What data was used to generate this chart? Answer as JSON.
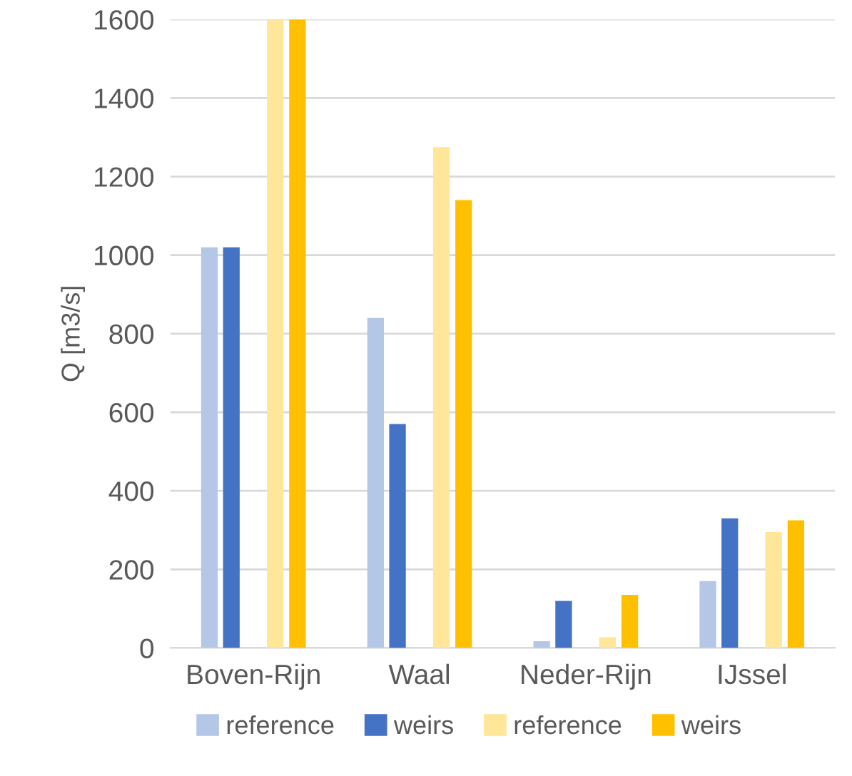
{
  "chart_data": {
    "type": "bar",
    "ylabel": "Q [m3/s]",
    "categories": [
      "Boven-Rijn",
      "Waal",
      "Neder-Rijn",
      "IJssel"
    ],
    "series": [
      {
        "name": "reference",
        "color": "#b4c7e7",
        "values": [
          1020,
          840,
          17,
          170
        ]
      },
      {
        "name": "weirs",
        "color": "#4472c4",
        "values": [
          1020,
          570,
          120,
          330
        ]
      },
      {
        "name": "reference",
        "color": "#ffe699",
        "values": [
          1600,
          1275,
          27,
          295
        ]
      },
      {
        "name": "weirs",
        "color": "#ffc000",
        "values": [
          1600,
          1140,
          135,
          325
        ]
      }
    ],
    "ylim": [
      0,
      1600
    ],
    "yticks": [
      0,
      200,
      400,
      600,
      800,
      1000,
      1200,
      1400,
      1600
    ],
    "grid": "y",
    "legend": "bottom"
  }
}
